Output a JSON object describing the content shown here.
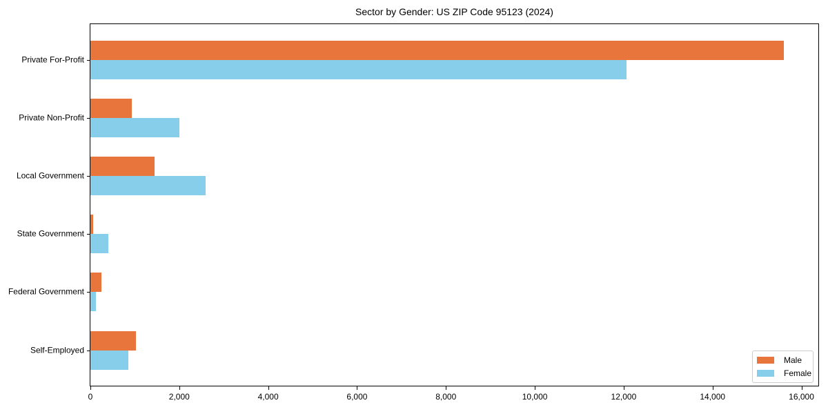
{
  "title": "Sector by Gender: US ZIP Code 95123 (2024)",
  "chart_data": {
    "type": "bar",
    "orientation": "horizontal",
    "title": "Sector by Gender: US ZIP Code 95123 (2024)",
    "categories": [
      "Private For-Profit",
      "Private Non-Profit",
      "Local Government",
      "State Government",
      "Federal Government",
      "Self-Employed"
    ],
    "series": [
      {
        "name": "Male",
        "color": "#E8763C",
        "values": [
          15600,
          930,
          1450,
          60,
          250,
          1020
        ]
      },
      {
        "name": "Female",
        "color": "#87CEEB",
        "values": [
          12070,
          2000,
          2600,
          400,
          120,
          850
        ]
      }
    ],
    "xlabel": "",
    "ylabel": "",
    "xlim": [
      0,
      16380
    ],
    "xticks": [
      0,
      2000,
      4000,
      6000,
      8000,
      10000,
      12000,
      14000,
      16000
    ],
    "xtick_labels": [
      "0",
      "2,000",
      "4,000",
      "6,000",
      "8,000",
      "10,000",
      "12,000",
      "14,000",
      "16,000"
    ],
    "grid": false,
    "legend_position": "lower right",
    "axis_color": "#000000",
    "background_color": "#ffffff"
  }
}
